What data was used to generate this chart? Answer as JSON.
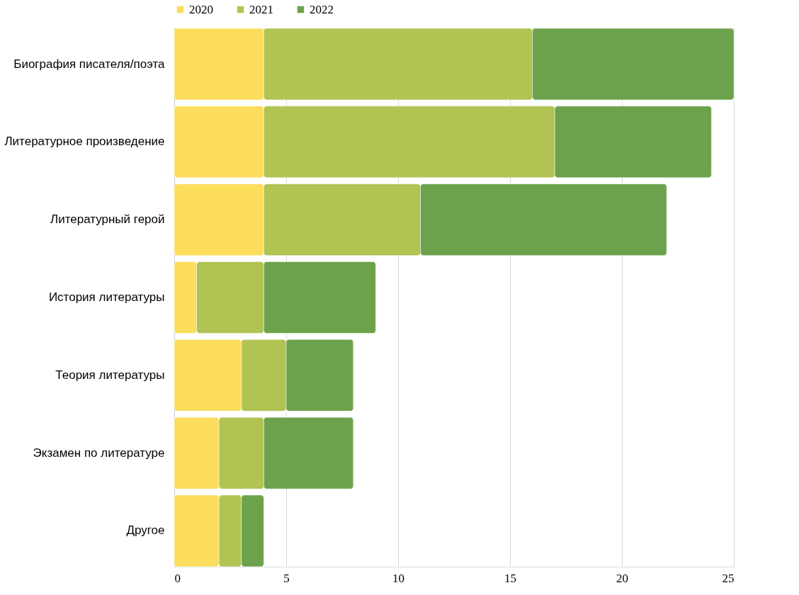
{
  "chart_data": {
    "type": "bar",
    "orientation": "horizontal",
    "stacked": true,
    "categories": [
      "Биография писателя/поэта",
      "Литературное произведение",
      "Литературный герой",
      "История литературы",
      "Теория литературы",
      "Экзамен по литературе",
      "Другое"
    ],
    "series": [
      {
        "name": "2020",
        "color": "#fcdd5c",
        "values": [
          4,
          4,
          4,
          1,
          3,
          2,
          2
        ]
      },
      {
        "name": "2021",
        "color": "#b1c352",
        "values": [
          12,
          13,
          7,
          3,
          2,
          2,
          1
        ]
      },
      {
        "name": "2022",
        "color": "#6ca24c",
        "values": [
          9,
          7,
          11,
          5,
          3,
          4,
          1
        ]
      }
    ],
    "xlim": [
      0,
      25
    ],
    "xticks": [
      0,
      5,
      10,
      15,
      20,
      25
    ],
    "grid": "x",
    "legend": "top"
  }
}
